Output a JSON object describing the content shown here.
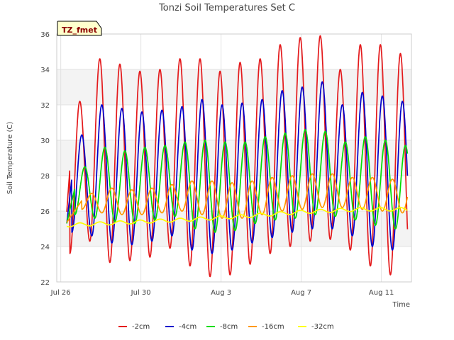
{
  "chart_data": {
    "type": "line",
    "title": "Tonzi Soil Temperatures Set C",
    "xlabel": "Time",
    "ylabel": "Soil Temperature (C)",
    "badge": "TZ_fmet",
    "xlim_days": [
      25.8,
      43.5
    ],
    "ylim": [
      22,
      36
    ],
    "x_ticks": [
      {
        "label": "Jul 26",
        "day": 26
      },
      {
        "label": "Jul 30",
        "day": 30
      },
      {
        "label": "Aug 3",
        "day": 34
      },
      {
        "label": "Aug 7",
        "day": 38
      },
      {
        "label": "Aug 11",
        "day": 42
      }
    ],
    "y_ticks": [
      22,
      24,
      26,
      28,
      30,
      32,
      34,
      36
    ],
    "shaded_bands": [
      [
        24,
        26
      ],
      [
        28,
        30
      ],
      [
        32,
        34
      ]
    ],
    "grid": true,
    "legend_position": "bottom",
    "series": [
      {
        "name": "-2cm",
        "color": "#e41a1c",
        "x_start": 26.3,
        "x_end": 43.3,
        "peak_day": [
          26.95,
          27.95,
          28.95,
          29.95,
          30.95,
          31.95,
          32.95,
          33.95,
          34.95,
          35.95,
          36.95,
          37.95,
          38.95,
          39.95,
          40.95,
          41.95,
          42.95
        ],
        "daily_max": [
          32.2,
          34.6,
          34.3,
          33.9,
          34.0,
          34.6,
          34.6,
          33.9,
          34.4,
          34.6,
          35.4,
          35.8,
          35.9,
          34.0,
          35.4,
          35.4,
          34.9
        ],
        "daily_min": [
          23.6,
          24.3,
          23.1,
          23.2,
          23.4,
          23.9,
          22.9,
          22.3,
          22.4,
          23.0,
          23.6,
          24.0,
          24.3,
          24.4,
          23.8,
          22.9,
          22.4
        ]
      },
      {
        "name": "-4cm",
        "color": "#0000cc",
        "x_start": 26.3,
        "x_end": 43.3,
        "peak_day": [
          27.05,
          28.05,
          29.05,
          30.05,
          31.05,
          32.05,
          33.05,
          34.05,
          35.05,
          36.05,
          37.05,
          38.05,
          39.05,
          40.05,
          41.05,
          42.05,
          43.05
        ],
        "daily_max": [
          30.3,
          32.0,
          31.8,
          31.6,
          31.7,
          31.9,
          32.3,
          32.0,
          32.1,
          32.3,
          32.8,
          33.0,
          33.3,
          32.0,
          32.7,
          32.5,
          32.2
        ],
        "daily_min": [
          24.8,
          24.6,
          24.2,
          24.1,
          24.3,
          24.6,
          23.8,
          23.6,
          23.8,
          24.2,
          24.5,
          24.8,
          25.0,
          25.0,
          24.6,
          24.0,
          23.8
        ]
      },
      {
        "name": "-8cm",
        "color": "#00dd00",
        "x_start": 26.3,
        "x_end": 43.3,
        "peak_day": [
          27.2,
          28.2,
          29.2,
          30.2,
          31.2,
          32.2,
          33.2,
          34.2,
          35.2,
          36.2,
          37.2,
          38.2,
          39.2,
          40.2,
          41.2,
          42.2,
          43.2
        ],
        "daily_max": [
          28.5,
          29.6,
          29.4,
          29.6,
          29.7,
          29.9,
          30.0,
          29.9,
          29.9,
          30.2,
          30.4,
          30.6,
          30.5,
          29.9,
          30.2,
          30.0,
          29.7
        ],
        "daily_min": [
          25.8,
          25.6,
          25.4,
          25.3,
          25.5,
          25.7,
          25.0,
          24.8,
          24.9,
          25.3,
          25.5,
          25.6,
          25.8,
          25.7,
          25.5,
          25.2,
          25.0
        ]
      },
      {
        "name": "-16cm",
        "color": "#ff9900",
        "x_start": 26.3,
        "x_end": 43.3,
        "peak_day": [
          27.55,
          28.55,
          29.55,
          30.55,
          31.55,
          32.55,
          33.55,
          34.55,
          35.55,
          36.55,
          37.55,
          38.55,
          39.55,
          40.55,
          41.55,
          42.55,
          43.55
        ],
        "daily_max": [
          27.0,
          27.3,
          27.2,
          27.3,
          27.5,
          27.7,
          27.7,
          27.6,
          27.7,
          27.9,
          28.0,
          28.1,
          28.1,
          27.9,
          27.9,
          27.8,
          27.7
        ],
        "daily_min": [
          26.1,
          25.9,
          25.8,
          25.8,
          25.9,
          26.0,
          25.8,
          25.6,
          25.6,
          25.8,
          26.0,
          26.1,
          26.2,
          26.2,
          26.1,
          26.0,
          25.9
        ]
      },
      {
        "name": "-32cm",
        "color": "#ffff00",
        "x_start": 26.3,
        "x_end": 43.3,
        "trend": [
          [
            26.3,
            25.2
          ],
          [
            29.0,
            25.35
          ],
          [
            32.0,
            25.5
          ],
          [
            35.0,
            25.7
          ],
          [
            38.0,
            25.95
          ],
          [
            41.0,
            26.1
          ],
          [
            43.3,
            26.1
          ]
        ],
        "daily_amplitude": 0.1
      }
    ]
  }
}
